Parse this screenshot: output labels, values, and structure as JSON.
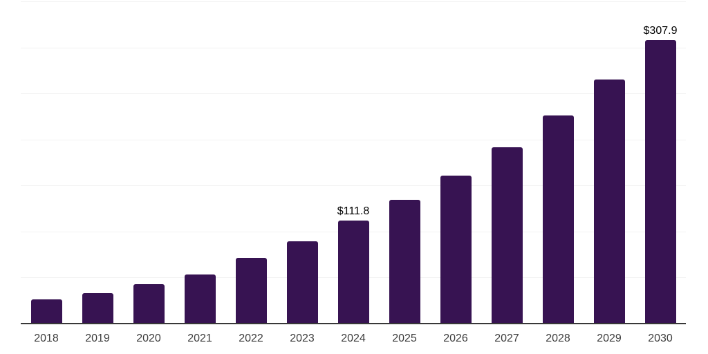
{
  "chart": {
    "background_color": "#ffffff",
    "bar_color": "#371352",
    "axis_line_color": "#383838",
    "gridline_color": "#f2f2f2",
    "tick_label_color": "#3d3d3d",
    "data_label_color": "#000000"
  },
  "chart_data": {
    "type": "bar",
    "title": "",
    "xlabel": "",
    "ylabel": "",
    "categories": [
      "2018",
      "2019",
      "2020",
      "2021",
      "2022",
      "2023",
      "2024",
      "2025",
      "2026",
      "2027",
      "2028",
      "2029",
      "2030"
    ],
    "values": [
      26.3,
      33.1,
      42.8,
      53.4,
      71.4,
      89.4,
      111.8,
      134.3,
      160.5,
      191.4,
      225.9,
      264.9,
      307.9
    ],
    "data_labels": {
      "2024": "$111.8",
      "2030": "$307.9"
    },
    "ylim": [
      0,
      350
    ],
    "gridline_step": 50,
    "grid": true,
    "legend": false,
    "y_axis_labels_visible": false
  }
}
